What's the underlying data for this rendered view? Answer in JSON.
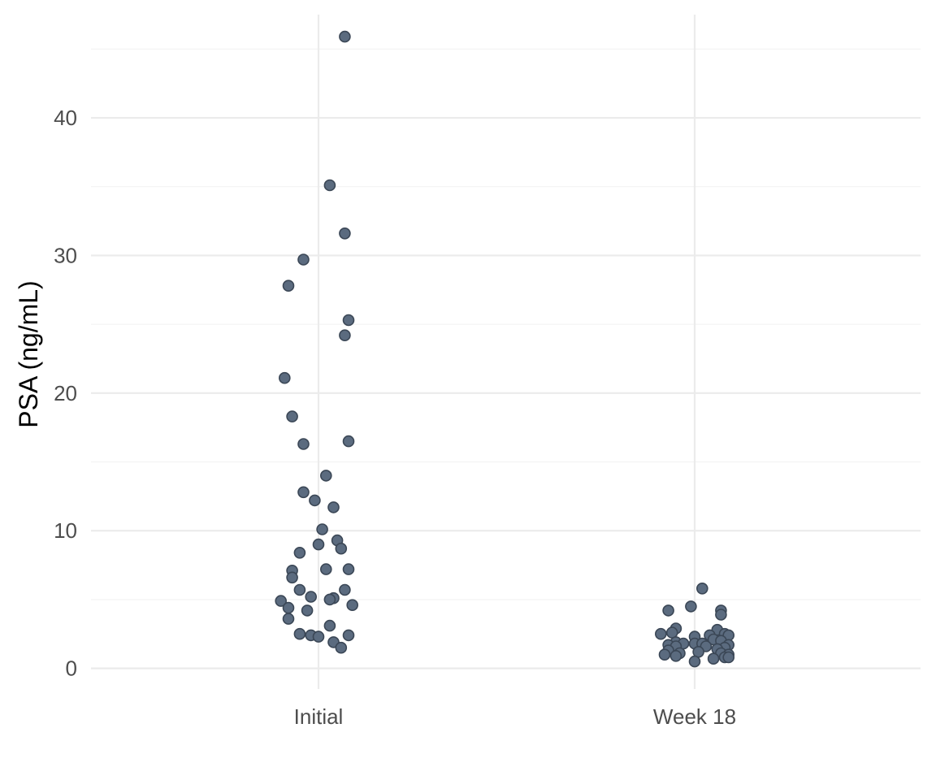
{
  "chart_data": {
    "type": "scatter",
    "title": "",
    "xlabel": "",
    "ylabel": "PSA (ng/mL)",
    "categories": [
      "Initial",
      "Week 18"
    ],
    "y_ticks": [
      0,
      10,
      20,
      30,
      40
    ],
    "ylim": [
      -1.5,
      47.5
    ],
    "grid": true,
    "point_color": "#5b6b7f",
    "series": [
      {
        "category": "Initial",
        "values": [
          45.9,
          35.1,
          31.6,
          29.7,
          27.8,
          25.3,
          24.2,
          21.1,
          18.3,
          16.5,
          16.3,
          14.0,
          12.8,
          12.2,
          11.7,
          10.1,
          9.3,
          9.0,
          8.7,
          8.4,
          7.2,
          7.2,
          7.1,
          6.6,
          5.7,
          5.7,
          5.2,
          5.1,
          5.0,
          4.9,
          4.6,
          4.4,
          4.2,
          3.6,
          3.1,
          2.5,
          2.4,
          2.4,
          2.3,
          1.9,
          1.5
        ],
        "jitter": [
          0.07,
          0.03,
          0.07,
          -0.04,
          -0.08,
          0.08,
          0.07,
          -0.09,
          -0.07,
          0.08,
          -0.04,
          0.02,
          -0.04,
          -0.01,
          0.04,
          0.01,
          0.05,
          0.0,
          0.06,
          -0.05,
          0.02,
          0.08,
          -0.07,
          -0.07,
          -0.05,
          0.07,
          -0.02,
          0.04,
          0.03,
          -0.1,
          0.09,
          -0.08,
          -0.03,
          -0.08,
          0.03,
          -0.05,
          -0.02,
          0.08,
          0.0,
          0.04,
          0.06
        ]
      },
      {
        "category": "Week 18",
        "values": [
          5.8,
          4.5,
          4.2,
          4.2,
          3.9,
          2.9,
          2.8,
          2.6,
          2.5,
          2.5,
          2.4,
          2.4,
          2.3,
          2.1,
          2.0,
          1.9,
          1.8,
          1.8,
          1.8,
          1.7,
          1.7,
          1.6,
          1.6,
          1.5,
          1.4,
          1.3,
          1.2,
          1.1,
          1.1,
          1.0,
          1.0,
          0.9,
          0.8,
          0.8,
          0.7,
          0.5
        ],
        "jitter": [
          0.02,
          -0.01,
          -0.07,
          0.07,
          0.07,
          -0.05,
          0.06,
          -0.06,
          0.08,
          -0.09,
          0.09,
          0.04,
          0.0,
          0.05,
          0.07,
          -0.05,
          -0.03,
          0.0,
          0.02,
          -0.07,
          0.09,
          0.03,
          -0.05,
          0.08,
          0.06,
          -0.07,
          0.01,
          -0.04,
          0.07,
          -0.08,
          0.09,
          -0.05,
          0.08,
          0.09,
          0.05,
          0.0
        ]
      }
    ]
  }
}
